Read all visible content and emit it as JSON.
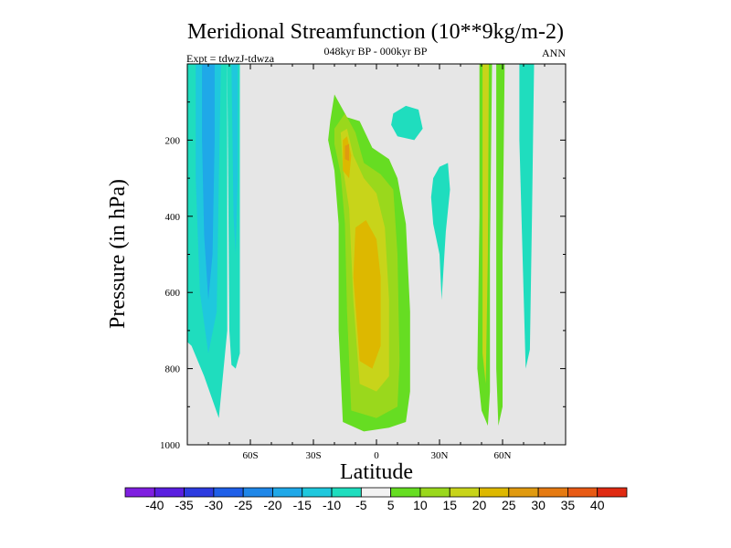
{
  "chart_data": {
    "type": "contour",
    "title": "Meridional Streamfunction (10**9kg/m-2)",
    "subtitle": "048kyr BP - 000kyr BP",
    "left_label": "Expt = tdwzJ-tdwza",
    "right_label": "ANN",
    "xlabel": "Latitude",
    "ylabel": "Pressure (in hPa)",
    "xlim": [
      -90,
      90
    ],
    "ylim": [
      0,
      1000
    ],
    "y_reversed": true,
    "x_ticks": [
      {
        "value": -60,
        "label": "60S"
      },
      {
        "value": -30,
        "label": "30S"
      },
      {
        "value": 0,
        "label": "0"
      },
      {
        "value": 30,
        "label": "30N"
      },
      {
        "value": 60,
        "label": "60N"
      }
    ],
    "y_ticks": [
      {
        "value": 200,
        "label": "200"
      },
      {
        "value": 400,
        "label": "400"
      },
      {
        "value": 600,
        "label": "600"
      },
      {
        "value": 800,
        "label": "800"
      },
      {
        "value": 1000,
        "label": "1000"
      }
    ],
    "background_color": "#e6e6e6",
    "levels": [
      {
        "value": -40,
        "label": "-40",
        "color": "#7f1fe0"
      },
      {
        "value": -35,
        "label": "-35",
        "color": "#5a1fe0"
      },
      {
        "value": -30,
        "label": "-30",
        "color": "#2d3be0"
      },
      {
        "value": -25,
        "label": "-25",
        "color": "#1f5fe8"
      },
      {
        "value": -20,
        "label": "-20",
        "color": "#1f87e8"
      },
      {
        "value": -15,
        "label": "-15",
        "color": "#1fa8e8"
      },
      {
        "value": -10,
        "label": "-10",
        "color": "#1fc8dd"
      },
      {
        "value": -5,
        "label": "-5",
        "color": "#1fddbe"
      },
      {
        "value": 5,
        "label": "5",
        "color": "#f2f2f2"
      },
      {
        "value": 10,
        "label": "10",
        "color": "#66dd22"
      },
      {
        "value": 15,
        "label": "15",
        "color": "#9ad81c"
      },
      {
        "value": 20,
        "label": "20",
        "color": "#c8d41a"
      },
      {
        "value": 25,
        "label": "25",
        "color": "#ddb800"
      },
      {
        "value": 30,
        "label": "30",
        "color": "#e09a10"
      },
      {
        "value": 35,
        "label": "35",
        "color": "#e57a12"
      },
      {
        "value": 40,
        "label": "40",
        "color": "#e85a14"
      },
      {
        "value": null,
        "label": "",
        "color": "#e02a12"
      }
    ],
    "regions": [
      {
        "name": "sh-high-lat-negative",
        "color": "#1fddbe",
        "points": [
          [
            -90,
            0
          ],
          [
            -71,
            0
          ],
          [
            -71,
            700
          ],
          [
            -75,
            930
          ],
          [
            -82,
            820
          ],
          [
            -88,
            740
          ],
          [
            -90,
            730
          ]
        ]
      },
      {
        "name": "sh-high-lat-core",
        "color": "#1fc8dd",
        "points": [
          [
            -86,
            0
          ],
          [
            -74,
            0
          ],
          [
            -75,
            300
          ],
          [
            -76,
            650
          ],
          [
            -80,
            760
          ],
          [
            -84,
            600
          ],
          [
            -86,
            300
          ]
        ]
      },
      {
        "name": "sh-high-lat-inner",
        "color": "#1fa8e8",
        "points": [
          [
            -83,
            0
          ],
          [
            -77,
            0
          ],
          [
            -77,
            200
          ],
          [
            -78,
            500
          ],
          [
            -80,
            620
          ],
          [
            -82,
            450
          ],
          [
            -83,
            200
          ]
        ]
      },
      {
        "name": "sh-narrow-strip",
        "color": "#1fddbe",
        "points": [
          [
            -71,
            0
          ],
          [
            -65,
            0
          ],
          [
            -65,
            760
          ],
          [
            -67,
            800
          ],
          [
            -69,
            790
          ],
          [
            -70,
            700
          ]
        ]
      },
      {
        "name": "sh-narrow-strip-core",
        "color": "#1fc8dd",
        "points": [
          [
            -69,
            0
          ],
          [
            -66,
            0
          ],
          [
            -66,
            300
          ],
          [
            -67,
            500
          ],
          [
            -68,
            400
          ]
        ]
      },
      {
        "name": "tropical-cell-outer",
        "color": "#66dd22",
        "points": [
          [
            -22,
            150
          ],
          [
            -20,
            80
          ],
          [
            -14,
            140
          ],
          [
            -8,
            150
          ],
          [
            -2,
            220
          ],
          [
            6,
            250
          ],
          [
            10,
            300
          ],
          [
            14,
            420
          ],
          [
            16,
            650
          ],
          [
            16,
            860
          ],
          [
            14,
            940
          ],
          [
            6,
            955
          ],
          [
            -6,
            965
          ],
          [
            -16,
            940
          ],
          [
            -18,
            700
          ],
          [
            -18,
            420
          ],
          [
            -20,
            280
          ],
          [
            -23,
            200
          ]
        ]
      },
      {
        "name": "tropical-cell-mid",
        "color": "#9ad81c",
        "points": [
          [
            -20,
            170
          ],
          [
            -15,
            130
          ],
          [
            -10,
            180
          ],
          [
            -6,
            260
          ],
          [
            2,
            290
          ],
          [
            8,
            330
          ],
          [
            10,
            500
          ],
          [
            11,
            780
          ],
          [
            10,
            900
          ],
          [
            0,
            930
          ],
          [
            -12,
            910
          ],
          [
            -14,
            650
          ],
          [
            -15,
            420
          ],
          [
            -17,
            290
          ],
          [
            -20,
            210
          ]
        ]
      },
      {
        "name": "tropical-cell-yellow",
        "color": "#c8d41a",
        "points": [
          [
            -17,
            180
          ],
          [
            -14,
            170
          ],
          [
            -11,
            240
          ],
          [
            -6,
            300
          ],
          [
            0,
            340
          ],
          [
            4,
            430
          ],
          [
            6,
            620
          ],
          [
            6,
            820
          ],
          [
            0,
            860
          ],
          [
            -8,
            840
          ],
          [
            -11,
            620
          ],
          [
            -13,
            380
          ],
          [
            -16,
            270
          ]
        ]
      },
      {
        "name": "tropical-cell-core",
        "color": "#ddb800",
        "points": [
          [
            -10,
            430
          ],
          [
            -5,
            410
          ],
          [
            0,
            460
          ],
          [
            2,
            560
          ],
          [
            2,
            740
          ],
          [
            -2,
            800
          ],
          [
            -8,
            780
          ],
          [
            -11,
            560
          ]
        ]
      },
      {
        "name": "tropical-upper-max",
        "color": "#ddb800",
        "points": [
          [
            -16,
            200
          ],
          [
            -14,
            190
          ],
          [
            -12,
            240
          ],
          [
            -13,
            300
          ],
          [
            -16,
            280
          ]
        ]
      },
      {
        "name": "tropical-upper-max-core",
        "color": "#e09a10",
        "points": [
          [
            -15,
            215
          ],
          [
            -13,
            210
          ],
          [
            -13,
            255
          ],
          [
            -15,
            250
          ]
        ]
      },
      {
        "name": "nh-upper-blob",
        "color": "#1fddbe",
        "points": [
          [
            8,
            130
          ],
          [
            14,
            110
          ],
          [
            20,
            120
          ],
          [
            22,
            170
          ],
          [
            18,
            200
          ],
          [
            10,
            190
          ],
          [
            7,
            160
          ]
        ]
      },
      {
        "name": "nh-mid-blob",
        "color": "#1fddbe",
        "points": [
          [
            27,
            300
          ],
          [
            30,
            270
          ],
          [
            34,
            260
          ],
          [
            35,
            330
          ],
          [
            33,
            440
          ],
          [
            31,
            620
          ],
          [
            30,
            500
          ],
          [
            27,
            420
          ],
          [
            26,
            350
          ]
        ]
      },
      {
        "name": "nh-mid-lat-outer",
        "color": "#66dd22",
        "points": [
          [
            49,
            0
          ],
          [
            55,
            0
          ],
          [
            54,
            500
          ],
          [
            54,
            860
          ],
          [
            53,
            950
          ],
          [
            50,
            910
          ],
          [
            48,
            800
          ],
          [
            49,
            400
          ]
        ]
      },
      {
        "name": "nh-mid-lat-inner",
        "color": "#c8d41a",
        "points": [
          [
            50.5,
            0
          ],
          [
            53.5,
            0
          ],
          [
            53,
            500
          ],
          [
            52,
            840
          ],
          [
            50.5,
            760
          ],
          [
            50.5,
            400
          ]
        ]
      },
      {
        "name": "nh-mid-lat-strip2",
        "color": "#66dd22",
        "points": [
          [
            57,
            0
          ],
          [
            61,
            0
          ],
          [
            60,
            500
          ],
          [
            60,
            900
          ],
          [
            58,
            950
          ],
          [
            57,
            800
          ],
          [
            57,
            400
          ]
        ]
      },
      {
        "name": "nh-high-lat-strip",
        "color": "#1fddbe",
        "points": [
          [
            68,
            0
          ],
          [
            75,
            0
          ],
          [
            74,
            400
          ],
          [
            73,
            750
          ],
          [
            71,
            800
          ],
          [
            70,
            600
          ],
          [
            68,
            200
          ]
        ]
      }
    ]
  }
}
